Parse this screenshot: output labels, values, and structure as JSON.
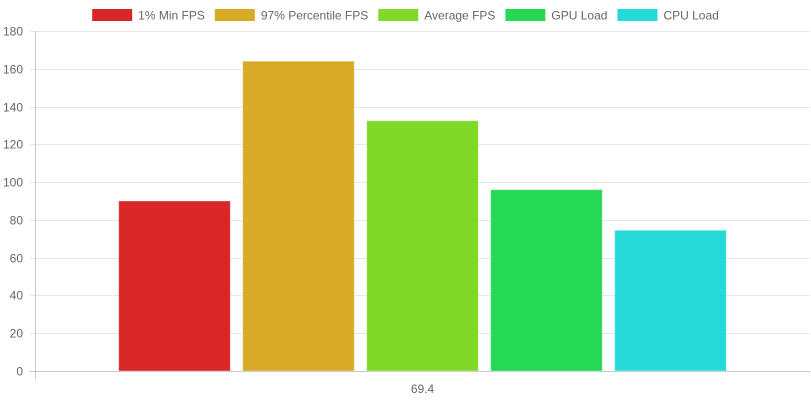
{
  "chart_data": {
    "type": "bar",
    "categories": [
      "69.4"
    ],
    "series": [
      {
        "name": "1% Min FPS",
        "values": [
          90
        ],
        "color": "#d92626"
      },
      {
        "name": "97% Percentile FPS",
        "values": [
          164
        ],
        "color": "#d8ab26"
      },
      {
        "name": "Average FPS",
        "values": [
          132.5
        ],
        "color": "#80d926"
      },
      {
        "name": "GPU Load",
        "values": [
          96
        ],
        "color": "#26d954"
      },
      {
        "name": "CPU Load",
        "values": [
          74.5
        ],
        "color": "#26d9d9"
      }
    ],
    "yticks": [
      "0",
      "20",
      "40",
      "60",
      "80",
      "100",
      "120",
      "140",
      "160",
      "180"
    ],
    "ylim": [
      0,
      180
    ],
    "grid": true,
    "legend": "top"
  }
}
